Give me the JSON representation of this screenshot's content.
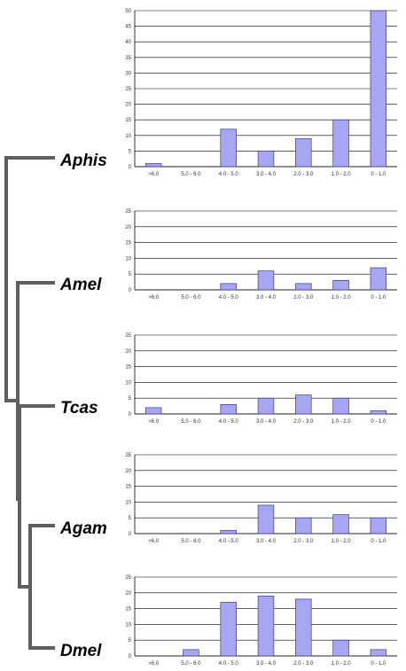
{
  "tree": {
    "color": "#5f5f5f",
    "species": [
      "Aphis",
      "Amel",
      "Tcas",
      "Agam",
      "Dmel"
    ]
  },
  "bar_style": {
    "fill": "#a6a6f5",
    "stroke": "#3a3a7a",
    "grid": "#000000"
  },
  "chart_data": [
    {
      "type": "bar",
      "species": "Aphis",
      "categories": [
        ">6.0",
        "5.0 - 6.0",
        "4.0 - 5.0",
        "3.0 - 4.0",
        "2.0 - 3.0",
        "1.0 - 2.0",
        "0 - 1.0"
      ],
      "values": [
        1,
        0,
        12,
        5,
        9,
        15,
        50
      ],
      "ylim": [
        0,
        50
      ],
      "yticks": [
        0,
        5,
        10,
        15,
        20,
        25,
        30,
        35,
        40,
        45,
        50
      ],
      "grid": true
    },
    {
      "type": "bar",
      "species": "Amel",
      "categories": [
        ">6.0",
        "5.0 - 6.0",
        "4.0 - 5.0",
        "3.0 - 4.0",
        "2.0 - 3.0",
        "1.0 - 2.0",
        "0 - 1.0"
      ],
      "values": [
        0,
        0,
        2,
        6,
        2,
        3,
        7
      ],
      "ylim": [
        0,
        25
      ],
      "yticks": [
        0,
        5,
        10,
        15,
        20,
        25
      ],
      "grid": true
    },
    {
      "type": "bar",
      "species": "Tcas",
      "categories": [
        ">6.0",
        "5.0 - 6.0",
        "4.0 - 5.0",
        "3.0 - 4.0",
        "2.0 - 3.0",
        "1.0 - 2.0",
        "0 - 1.0"
      ],
      "values": [
        2,
        0,
        3,
        5,
        6,
        5,
        1
      ],
      "ylim": [
        0,
        25
      ],
      "yticks": [
        0,
        5,
        10,
        15,
        20,
        25
      ],
      "grid": true
    },
    {
      "type": "bar",
      "species": "Agam",
      "categories": [
        ">6.0",
        "5.0 - 6.0",
        "4.0 - 5.0",
        "3.0 - 4.0",
        "2.0 - 3.0",
        "1.0 - 2.0",
        "0 - 1.0"
      ],
      "values": [
        0,
        0,
        1,
        9,
        5,
        6,
        5
      ],
      "ylim": [
        0,
        25
      ],
      "yticks": [
        0,
        5,
        10,
        15,
        20,
        25
      ],
      "grid": true
    },
    {
      "type": "bar",
      "species": "Dmel",
      "categories": [
        ">6.0",
        "5.0 - 6.0",
        "4.0 - 5.0",
        "3.0 - 4.0",
        "2.0 - 3.0",
        "1.0 - 2.0",
        "0 - 1.0"
      ],
      "values": [
        0,
        2,
        17,
        19,
        18,
        5,
        2
      ],
      "ylim": [
        0,
        25
      ],
      "yticks": [
        0,
        5,
        10,
        15,
        20,
        25
      ],
      "grid": true
    }
  ]
}
